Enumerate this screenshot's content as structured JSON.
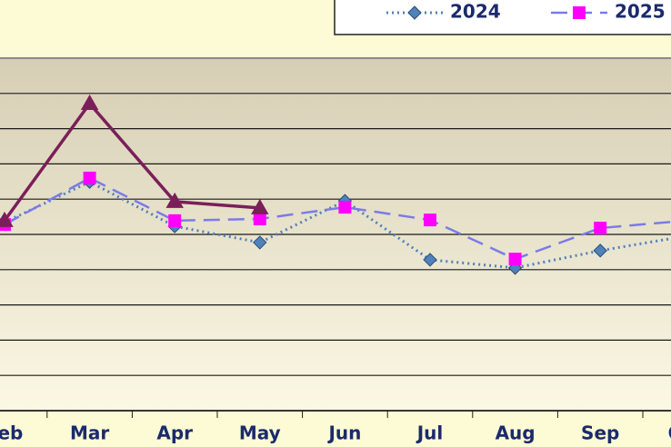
{
  "chart_data": {
    "type": "line",
    "categories": [
      "Feb",
      "Mar",
      "Apr",
      "May",
      "Jun",
      "Jul",
      "Aug",
      "Sep",
      "Oct"
    ],
    "series": [
      {
        "name": "2024",
        "color": "#4f81bd",
        "values": [
          5.34,
          6.49,
          5.23,
          4.77,
          5.95,
          4.28,
          4.05,
          4.54,
          4.95
        ]
      },
      {
        "name": "2025",
        "color": "#ff00ff",
        "values": [
          5.28,
          6.6,
          5.39,
          5.44,
          5.77,
          5.41,
          4.3,
          5.18,
          5.39
        ]
      },
      {
        "color": "#7a1f5a",
        "values": [
          5.39,
          8.71,
          5.93,
          5.75,
          null,
          null,
          null,
          null,
          null
        ]
      }
    ],
    "ylim": [
      0,
      10
    ],
    "yticks": [
      1,
      2,
      3,
      4,
      5,
      6,
      7,
      8,
      9
    ],
    "grid": true
  }
}
